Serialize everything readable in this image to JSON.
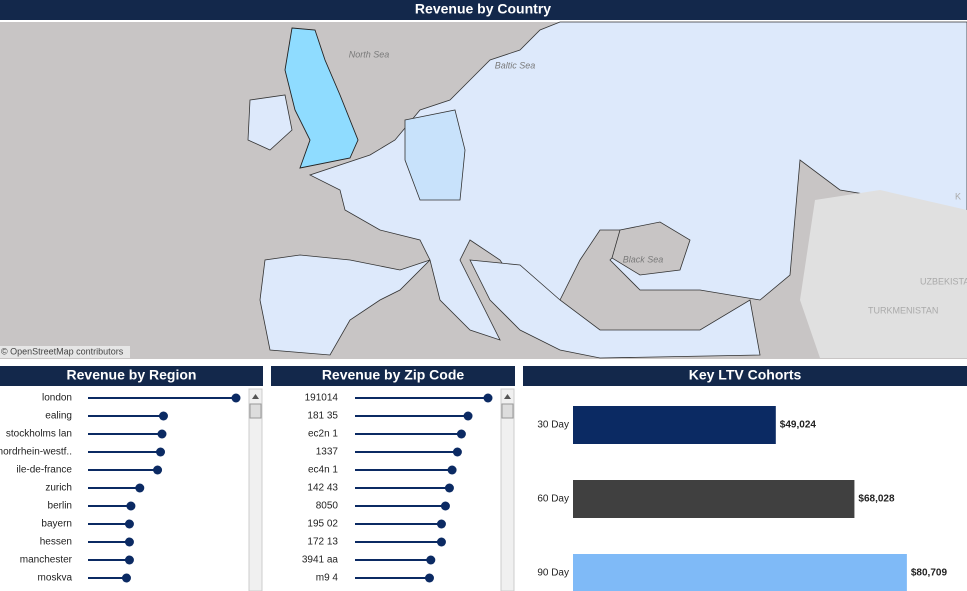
{
  "map": {
    "title": "Revenue by Country",
    "sea_labels": [
      "North Sea",
      "Baltic Sea",
      "Black Sea"
    ],
    "country_labels": [
      "UZBEKISTAN",
      "TURKMENISTAN",
      "K"
    ],
    "attribution": "© OpenStreetMap contributors"
  },
  "chart_data": [
    {
      "type": "lollipop",
      "title": "Revenue by Region",
      "categories": [
        "london",
        "ealing",
        "stockholms lan",
        "nordrhein-westf..",
        "ile-de-france",
        "zurich",
        "berlin",
        "bayern",
        "hessen",
        "manchester",
        "moskva"
      ],
      "values": [
        100,
        51,
        50,
        49,
        47,
        35,
        29,
        28,
        28,
        28,
        26
      ],
      "xlim": [
        0,
        100
      ],
      "color": "#0b2a63"
    },
    {
      "type": "lollipop",
      "title": "Revenue by Zip Code",
      "categories": [
        "191014",
        "181 35",
        "ec2n 1",
        "1337",
        "ec4n 1",
        "142 43",
        "8050",
        "195 02",
        "172 13",
        "3941 aa",
        "m9 4"
      ],
      "values": [
        100,
        85,
        80,
        77,
        73,
        71,
        68,
        65,
        65,
        57,
        56
      ],
      "xlim": [
        0,
        100
      ],
      "color": "#0b2a63"
    },
    {
      "type": "bar",
      "title": "Key LTV Cohorts",
      "categories": [
        "30 Day",
        "60 Day",
        "90 Day"
      ],
      "series": [
        {
          "name": "LTV",
          "colors": [
            "#0b2a63",
            "#404040",
            "#7fbaf7"
          ],
          "values": [
            49024,
            68028,
            80709
          ],
          "value_labels": [
            "$49,024",
            "$68,028",
            "$80,709"
          ]
        }
      ],
      "xlim": [
        0,
        95000
      ]
    }
  ]
}
